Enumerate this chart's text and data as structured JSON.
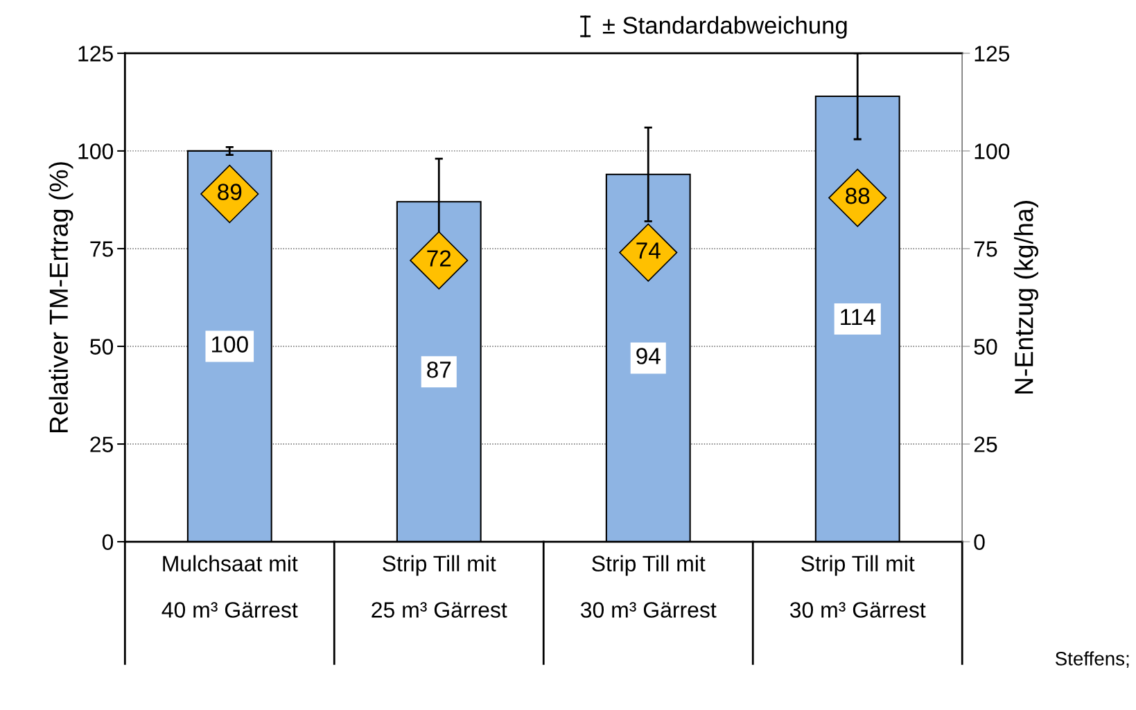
{
  "chart_data": {
    "type": "bar",
    "ylabel": "Relativer TM-Ertrag (%)",
    "y2label": "N-Entzug (kg/ha)",
    "categories": [
      "Mulchsaat mit\n40 m³ Gärrest",
      "Strip Till mit\n25 m³ Gärrest",
      "Strip Till mit\n30 m³ Gärrest",
      "Strip Till mit\n30 m³ Gärrest"
    ],
    "series": [
      {
        "color": "#8eb4e3",
        "values": [
          100,
          87,
          94,
          114
        ],
        "errors": [
          1,
          11,
          12,
          11
        ]
      },
      {
        "type": "scatter",
        "axis": "y2",
        "color": "#ffc000",
        "marker": "diamond",
        "values": [
          89,
          72,
          74,
          88
        ]
      }
    ],
    "ylim": [
      0,
      125
    ],
    "yticks": [
      0,
      25,
      50,
      75,
      100,
      125
    ],
    "y2lim": [
      0,
      125
    ],
    "y2ticks": [
      0,
      25,
      50,
      75,
      100,
      125
    ],
    "grid": "y",
    "data_labels": true,
    "annotations": [
      "± Standardabweichung",
      "Steffens;"
    ]
  }
}
